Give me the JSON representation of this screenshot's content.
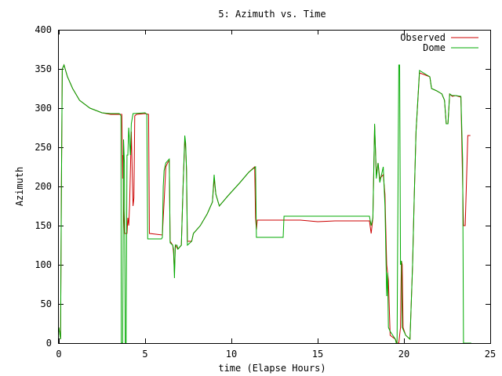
{
  "chart_data": {
    "type": "line",
    "title": "5: Azimuth vs. Time",
    "xlabel": "time (Elapse Hours)",
    "ylabel": "Azimuth",
    "xlim": [
      0,
      25
    ],
    "ylim": [
      0,
      400
    ],
    "xticks": [
      0,
      5,
      10,
      15,
      20,
      25
    ],
    "yticks": [
      0,
      50,
      100,
      150,
      200,
      250,
      300,
      350,
      400
    ],
    "grid": false,
    "legend_position": "top-right",
    "series": [
      {
        "name": "Observed",
        "color": "#cc0000",
        "points": [
          [
            0.0,
            20
          ],
          [
            0.1,
            5
          ],
          [
            0.15,
            200
          ],
          [
            0.2,
            350
          ],
          [
            0.3,
            355
          ],
          [
            0.5,
            340
          ],
          [
            0.8,
            325
          ],
          [
            1.2,
            310
          ],
          [
            1.8,
            300
          ],
          [
            2.5,
            294
          ],
          [
            3.0,
            292
          ],
          [
            3.5,
            292
          ],
          [
            3.65,
            292
          ],
          [
            3.7,
            210
          ],
          [
            3.72,
            240
          ],
          [
            3.75,
            170
          ],
          [
            3.8,
            140
          ],
          [
            3.95,
            140
          ],
          [
            4.0,
            160
          ],
          [
            4.05,
            150
          ],
          [
            4.1,
            175
          ],
          [
            4.2,
            270
          ],
          [
            4.3,
            175
          ],
          [
            4.35,
            185
          ],
          [
            4.4,
            290
          ],
          [
            4.5,
            292
          ],
          [
            5.0,
            293
          ],
          [
            5.2,
            292
          ],
          [
            5.25,
            140
          ],
          [
            6.0,
            138
          ],
          [
            6.05,
            160
          ],
          [
            6.1,
            180
          ],
          [
            6.2,
            225
          ],
          [
            6.3,
            230
          ],
          [
            6.4,
            233
          ],
          [
            6.45,
            130
          ],
          [
            6.6,
            125
          ],
          [
            6.65,
            115
          ],
          [
            6.7,
            90
          ],
          [
            6.75,
            125
          ],
          [
            6.9,
            120
          ],
          [
            7.1,
            125
          ],
          [
            7.2,
            200
          ],
          [
            7.3,
            260
          ],
          [
            7.35,
            250
          ],
          [
            7.4,
            220
          ],
          [
            7.45,
            130
          ],
          [
            7.7,
            130
          ],
          [
            7.8,
            140
          ],
          [
            8.2,
            150
          ],
          [
            8.6,
            165
          ],
          [
            8.9,
            180
          ],
          [
            9.0,
            210
          ],
          [
            9.1,
            190
          ],
          [
            9.3,
            175
          ],
          [
            9.8,
            188
          ],
          [
            10.5,
            205
          ],
          [
            11.0,
            218
          ],
          [
            11.35,
            225
          ],
          [
            11.4,
            160
          ],
          [
            11.45,
            145
          ],
          [
            11.5,
            157
          ],
          [
            12.0,
            157
          ],
          [
            13.0,
            157
          ],
          [
            14.0,
            157
          ],
          [
            14.5,
            156
          ],
          [
            15.0,
            155
          ],
          [
            16.0,
            156
          ],
          [
            17.0,
            156
          ],
          [
            18.0,
            156
          ],
          [
            18.1,
            140
          ],
          [
            18.2,
            160
          ],
          [
            18.3,
            278
          ],
          [
            18.4,
            215
          ],
          [
            18.5,
            230
          ],
          [
            18.6,
            210
          ],
          [
            18.8,
            215
          ],
          [
            18.9,
            190
          ],
          [
            19.0,
            100
          ],
          [
            19.1,
            80
          ],
          [
            19.2,
            10
          ],
          [
            19.5,
            5
          ],
          [
            19.6,
            0
          ],
          [
            19.7,
            0
          ],
          [
            19.8,
            20
          ],
          [
            19.85,
            105
          ],
          [
            19.9,
            100
          ],
          [
            19.95,
            20
          ],
          [
            20.1,
            10
          ],
          [
            20.35,
            5
          ],
          [
            20.5,
            100
          ],
          [
            20.6,
            190
          ],
          [
            20.7,
            270
          ],
          [
            20.9,
            345
          ],
          [
            21.5,
            340
          ],
          [
            21.6,
            325
          ],
          [
            21.9,
            322
          ],
          [
            22.2,
            318
          ],
          [
            22.35,
            310
          ],
          [
            22.45,
            280
          ],
          [
            22.55,
            280
          ],
          [
            22.65,
            318
          ],
          [
            22.8,
            315
          ],
          [
            23.0,
            316
          ],
          [
            23.3,
            314
          ],
          [
            23.35,
            260
          ],
          [
            23.45,
            150
          ],
          [
            23.55,
            150
          ],
          [
            23.7,
            265
          ],
          [
            23.85,
            265
          ]
        ]
      },
      {
        "name": "Dome",
        "color": "#00aa00",
        "points": [
          [
            0.0,
            20
          ],
          [
            0.1,
            5
          ],
          [
            0.15,
            200
          ],
          [
            0.2,
            350
          ],
          [
            0.3,
            355
          ],
          [
            0.5,
            340
          ],
          [
            0.8,
            325
          ],
          [
            1.2,
            310
          ],
          [
            1.8,
            300
          ],
          [
            2.5,
            294
          ],
          [
            3.0,
            293
          ],
          [
            3.5,
            293
          ],
          [
            3.55,
            292
          ],
          [
            3.6,
            290
          ],
          [
            3.62,
            0
          ],
          [
            3.68,
            0
          ],
          [
            3.7,
            0
          ],
          [
            3.75,
            260
          ],
          [
            3.8,
            230
          ],
          [
            3.85,
            0
          ],
          [
            3.9,
            0
          ],
          [
            3.95,
            240
          ],
          [
            4.0,
            240
          ],
          [
            4.05,
            275
          ],
          [
            4.15,
            240
          ],
          [
            4.2,
            280
          ],
          [
            4.3,
            293
          ],
          [
            5.0,
            294
          ],
          [
            5.1,
            292
          ],
          [
            5.15,
            133
          ],
          [
            5.9,
            133
          ],
          [
            5.95,
            133
          ],
          [
            6.0,
            135
          ],
          [
            6.05,
            200
          ],
          [
            6.1,
            220
          ],
          [
            6.2,
            230
          ],
          [
            6.4,
            235
          ],
          [
            6.45,
            128
          ],
          [
            6.6,
            125
          ],
          [
            6.65,
            120
          ],
          [
            6.7,
            83
          ],
          [
            6.75,
            125
          ],
          [
            6.85,
            125
          ],
          [
            6.9,
            120
          ],
          [
            7.1,
            125
          ],
          [
            7.2,
            200
          ],
          [
            7.3,
            265
          ],
          [
            7.35,
            255
          ],
          [
            7.4,
            220
          ],
          [
            7.45,
            125
          ],
          [
            7.7,
            130
          ],
          [
            7.8,
            140
          ],
          [
            8.2,
            150
          ],
          [
            8.6,
            165
          ],
          [
            8.9,
            180
          ],
          [
            9.0,
            215
          ],
          [
            9.1,
            190
          ],
          [
            9.3,
            175
          ],
          [
            9.8,
            188
          ],
          [
            10.5,
            205
          ],
          [
            11.0,
            218
          ],
          [
            11.4,
            225
          ],
          [
            11.45,
            135
          ],
          [
            12.0,
            135
          ],
          [
            13.0,
            135
          ],
          [
            13.05,
            162
          ],
          [
            14.0,
            162
          ],
          [
            15.0,
            162
          ],
          [
            16.0,
            162
          ],
          [
            17.0,
            162
          ],
          [
            18.0,
            162
          ],
          [
            18.1,
            150
          ],
          [
            18.2,
            160
          ],
          [
            18.3,
            280
          ],
          [
            18.4,
            210
          ],
          [
            18.5,
            230
          ],
          [
            18.6,
            205
          ],
          [
            18.8,
            225
          ],
          [
            18.9,
            175
          ],
          [
            19.0,
            60
          ],
          [
            19.05,
            90
          ],
          [
            19.1,
            20
          ],
          [
            19.2,
            15
          ],
          [
            19.5,
            5
          ],
          [
            19.55,
            0
          ],
          [
            19.6,
            0
          ],
          [
            19.7,
            355
          ],
          [
            19.75,
            355
          ],
          [
            19.8,
            100
          ],
          [
            19.85,
            105
          ],
          [
            19.9,
            20
          ],
          [
            20.1,
            10
          ],
          [
            20.35,
            5
          ],
          [
            20.5,
            100
          ],
          [
            20.6,
            190
          ],
          [
            20.7,
            270
          ],
          [
            20.9,
            348
          ],
          [
            21.5,
            340
          ],
          [
            21.6,
            325
          ],
          [
            21.9,
            322
          ],
          [
            22.2,
            318
          ],
          [
            22.35,
            310
          ],
          [
            22.45,
            280
          ],
          [
            22.55,
            280
          ],
          [
            22.65,
            318
          ],
          [
            22.8,
            316
          ],
          [
            23.0,
            316
          ],
          [
            23.3,
            315
          ],
          [
            23.4,
            235
          ],
          [
            23.45,
            0
          ],
          [
            23.9,
            0
          ]
        ]
      }
    ]
  }
}
